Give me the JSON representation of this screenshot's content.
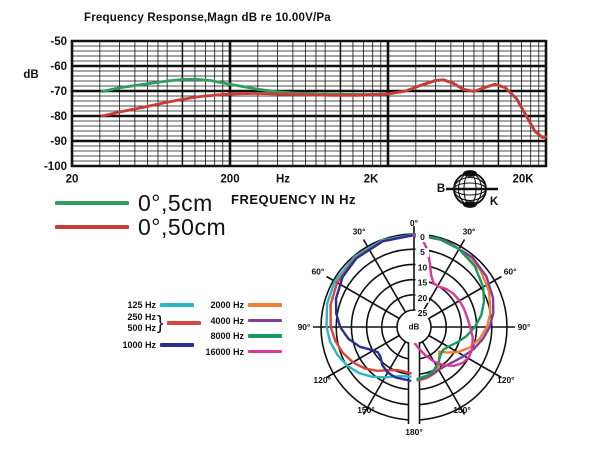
{
  "page": {
    "background": "#ffffff"
  },
  "chart_data": [
    {
      "type": "line",
      "title": "Frequency Response,Magn dB re 10.00V/Pa",
      "xscale": "log",
      "xlim": [
        20,
        20000
      ],
      "ylim": [
        -100,
        -50
      ],
      "xlabel": "Hz",
      "ylabel": "dB",
      "x_ticks": [
        "20",
        "200",
        "2K",
        "20K"
      ],
      "y_ticks": [
        "-50",
        "-60",
        "-70",
        "-80",
        "-90",
        "-100"
      ],
      "grid": true,
      "legend_position": "below-left",
      "series": [
        {
          "name": "0°,5cm",
          "color": "#2f9e60",
          "points": [
            [
              31,
              -70.2
            ],
            [
              40,
              -68.7
            ],
            [
              50,
              -67.8
            ],
            [
              65,
              -66.8
            ],
            [
              80,
              -66
            ],
            [
              100,
              -65.4
            ],
            [
              120,
              -65.3
            ],
            [
              150,
              -65.8
            ],
            [
              200,
              -67.3
            ],
            [
              250,
              -68.4
            ],
            [
              300,
              -69.3
            ],
            [
              400,
              -70.3
            ],
            [
              500,
              -70.8
            ],
            [
              700,
              -71.2
            ],
            [
              1000,
              -71.3
            ],
            [
              1500,
              -71.4
            ],
            [
              2000,
              -71.2
            ],
            [
              2600,
              -70
            ],
            [
              3200,
              -67.8
            ],
            [
              4000,
              -65.8
            ],
            [
              4500,
              -65.5
            ],
            [
              5200,
              -67
            ],
            [
              6000,
              -69.3
            ],
            [
              7000,
              -70.2
            ],
            [
              8000,
              -68.8
            ],
            [
              9500,
              -67.3
            ],
            [
              11000,
              -68.6
            ],
            [
              13000,
              -73
            ],
            [
              15000,
              -80
            ],
            [
              17000,
              -86
            ],
            [
              19000,
              -88.6
            ],
            [
              20000,
              -88.4
            ]
          ]
        },
        {
          "name": "0°,50cm",
          "color": "#cc3b35",
          "points": [
            [
              31,
              -80
            ],
            [
              40,
              -78.4
            ],
            [
              50,
              -77.2
            ],
            [
              65,
              -75.7
            ],
            [
              80,
              -74.5
            ],
            [
              100,
              -73.3
            ],
            [
              130,
              -72.2
            ],
            [
              170,
              -71.5
            ],
            [
              220,
              -71.1
            ],
            [
              300,
              -71
            ],
            [
              400,
              -71.2
            ],
            [
              600,
              -71.5
            ],
            [
              900,
              -71.7
            ],
            [
              1300,
              -71.7
            ],
            [
              2000,
              -71.2
            ],
            [
              2600,
              -70
            ],
            [
              3200,
              -67.8
            ],
            [
              4000,
              -65.8
            ],
            [
              4500,
              -65.5
            ],
            [
              5200,
              -67
            ],
            [
              6000,
              -69.3
            ],
            [
              7000,
              -70.2
            ],
            [
              8000,
              -68.8
            ],
            [
              9500,
              -67.3
            ],
            [
              11000,
              -68.6
            ],
            [
              13000,
              -73
            ],
            [
              15000,
              -80
            ],
            [
              17000,
              -86
            ],
            [
              19000,
              -88.6
            ],
            [
              20000,
              -88.4
            ]
          ]
        }
      ]
    },
    {
      "type": "polar",
      "radial_unit": "dB",
      "radial_ticks": [
        "0",
        "5",
        "10",
        "15",
        "20",
        "25"
      ],
      "radial_range_db": [
        0,
        25
      ],
      "angle_labels": [
        "0°",
        "30°",
        "60°",
        "90°",
        "120°",
        "150°",
        "180°"
      ],
      "series": [
        {
          "name": "125 Hz",
          "color": "#29b7c8",
          "side": "left",
          "points": [
            [
              0,
              0.2
            ],
            [
              20,
              0.2
            ],
            [
              40,
              0.3
            ],
            [
              60,
              0.5
            ],
            [
              75,
              1
            ],
            [
              90,
              1.8
            ],
            [
              100,
              2.6
            ],
            [
              110,
              3.8
            ],
            [
              120,
              5.2
            ],
            [
              130,
              7
            ],
            [
              140,
              9.2
            ],
            [
              150,
              11.5
            ],
            [
              158,
              13
            ],
            [
              166,
              13.9
            ],
            [
              176,
              14.2
            ]
          ]
        },
        {
          "name": "250 Hz, 500 Hz",
          "color": "#d8453c",
          "side": "left",
          "points": [
            [
              0,
              0.4
            ],
            [
              20,
              0.5
            ],
            [
              40,
              0.8
            ],
            [
              60,
              1.4
            ],
            [
              75,
              2.2
            ],
            [
              90,
              3.2
            ],
            [
              100,
              4.3
            ],
            [
              110,
              5.7
            ],
            [
              120,
              7.4
            ],
            [
              130,
              9.4
            ],
            [
              140,
              11.8
            ],
            [
              150,
              14.2
            ],
            [
              158,
              15.3
            ],
            [
              166,
              15.6
            ],
            [
              176,
              15.3
            ]
          ]
        },
        {
          "name": "1000 Hz",
          "color": "#2b2f8e",
          "side": "left",
          "points": [
            [
              0,
              0.3
            ],
            [
              20,
              0.6
            ],
            [
              40,
              1.1
            ],
            [
              55,
              1.9
            ],
            [
              70,
              3.3
            ],
            [
              80,
              4.6
            ],
            [
              90,
              6.3
            ],
            [
              100,
              8.6
            ],
            [
              110,
              11.6
            ],
            [
              118,
              14.6
            ],
            [
              125,
              16.1
            ],
            [
              132,
              15.8
            ],
            [
              140,
              14.3
            ],
            [
              150,
              13.3
            ],
            [
              160,
              12.9
            ],
            [
              176,
              12.9
            ]
          ]
        },
        {
          "name": "2000 Hz",
          "color": "#ef7f35",
          "side": "right",
          "points": [
            [
              0,
              0.2
            ],
            [
              20,
              0.4
            ],
            [
              35,
              0.9
            ],
            [
              50,
              1.9
            ],
            [
              65,
              3.3
            ],
            [
              80,
              5.1
            ],
            [
              90,
              6.6
            ],
            [
              100,
              8.6
            ],
            [
              110,
              11
            ],
            [
              120,
              14
            ],
            [
              128,
              17
            ],
            [
              134,
              19
            ],
            [
              141,
              17.4
            ],
            [
              148,
              15.2
            ],
            [
              156,
              13.9
            ],
            [
              166,
              13.2
            ],
            [
              176,
              13
            ]
          ]
        },
        {
          "name": "4000 Hz",
          "color": "#7e3f9d",
          "side": "right",
          "points": [
            [
              0,
              0.1
            ],
            [
              20,
              0.3
            ],
            [
              40,
              0.7
            ],
            [
              55,
              1.5
            ],
            [
              70,
              2.9
            ],
            [
              80,
              4.1
            ],
            [
              90,
              5.7
            ],
            [
              100,
              7.6
            ],
            [
              110,
              9.6
            ],
            [
              120,
              11.6
            ],
            [
              130,
              13.1
            ],
            [
              140,
              14.1
            ],
            [
              150,
              14.3
            ],
            [
              160,
              13.9
            ],
            [
              170,
              13.4
            ],
            [
              176,
              13.2
            ]
          ]
        },
        {
          "name": "8000 Hz",
          "color": "#169a62",
          "side": "right",
          "points": [
            [
              0,
              0.2
            ],
            [
              15,
              0.4
            ],
            [
              30,
              1
            ],
            [
              45,
              2.3
            ],
            [
              60,
              4.3
            ],
            [
              70,
              6.1
            ],
            [
              80,
              8.1
            ],
            [
              90,
              10.6
            ],
            [
              100,
              13.1
            ],
            [
              110,
              15.6
            ],
            [
              120,
              17.6
            ],
            [
              128,
              18.4
            ],
            [
              136,
              18
            ],
            [
              145,
              16.5
            ],
            [
              155,
              15
            ],
            [
              165,
              14
            ],
            [
              176,
              13.5
            ]
          ]
        },
        {
          "name": "16000 Hz",
          "color": "#d8399b",
          "side": "right",
          "points": [
            [
              0,
              0.5
            ],
            [
              6,
              2
            ],
            [
              10,
              5
            ],
            [
              14,
              9
            ],
            [
              18,
              12.5
            ],
            [
              24,
              14.8
            ],
            [
              32,
              15
            ],
            [
              40,
              14.2
            ],
            [
              50,
              13.6
            ],
            [
              60,
              13.3
            ],
            [
              70,
              13.1
            ],
            [
              80,
              12.8
            ],
            [
              90,
              12.1
            ],
            [
              100,
              11
            ],
            [
              110,
              10.2
            ],
            [
              118,
              10
            ],
            [
              126,
              10.6
            ],
            [
              134,
              12.2
            ],
            [
              142,
              14.6
            ],
            [
              150,
              17.5
            ],
            [
              158,
              20.5
            ],
            [
              166,
              23
            ],
            [
              172,
              24.4
            ],
            [
              176,
              25
            ]
          ]
        }
      ],
      "legend": {
        "left": [
          {
            "labels": [
              "125 Hz"
            ],
            "color": "#29b7c8"
          },
          {
            "labels": [
              "250 Hz",
              "500 Hz"
            ],
            "brace": "}",
            "color": "#d8453c"
          },
          {
            "labels": [
              "1000 Hz"
            ],
            "color": "#2b2f8e"
          }
        ],
        "right": [
          {
            "labels": [
              "2000 Hz"
            ],
            "color": "#ef7f35"
          },
          {
            "labels": [
              "4000 Hz"
            ],
            "color": "#7e3f9d"
          },
          {
            "labels": [
              "8000 Hz"
            ],
            "color": "#169a62"
          },
          {
            "labels": [
              "16000 Hz"
            ],
            "color": "#d8399b"
          }
        ]
      },
      "center_label": "dB"
    }
  ],
  "fr_legend": {
    "items": [
      {
        "label": "0°,5cm",
        "color": "#2f9e60"
      },
      {
        "label": "0°,50cm",
        "color": "#cc3b35"
      }
    ],
    "note": "FREQUENCY IN Hz"
  },
  "logo": {
    "letter_left": "B",
    "letter_right": "K"
  }
}
